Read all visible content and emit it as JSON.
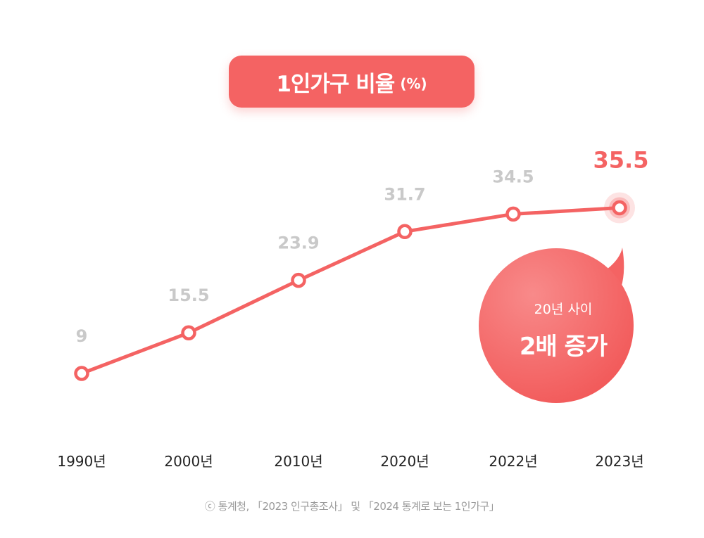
{
  "title": {
    "main": "1인가구 비율",
    "unit": "(%)"
  },
  "callout": {
    "line1": "20년 사이",
    "line2": "2배 증가"
  },
  "source": "ⓒ 통계청, 「2023 인구총조사」 및 「2024 통계로 보는 1인가구」",
  "colors": {
    "accent": "#f46363",
    "muted_label": "#c9c9c9",
    "axis_label": "#222222"
  },
  "chart_data": {
    "type": "line",
    "title": "1인가구 비율 (%)",
    "xlabel": "",
    "ylabel": "",
    "categories": [
      "1990년",
      "2000년",
      "2010년",
      "2020년",
      "2022년",
      "2023년"
    ],
    "series": [
      {
        "values": [
          9,
          15.5,
          23.9,
          31.7,
          34.5,
          35.5
        ]
      }
    ],
    "data_labels": [
      "9",
      "15.5",
      "23.9",
      "31.7",
      "34.5",
      "35.5"
    ],
    "highlight_index": 5,
    "ylim": [
      0,
      40
    ],
    "grid": false,
    "legend": "none"
  }
}
